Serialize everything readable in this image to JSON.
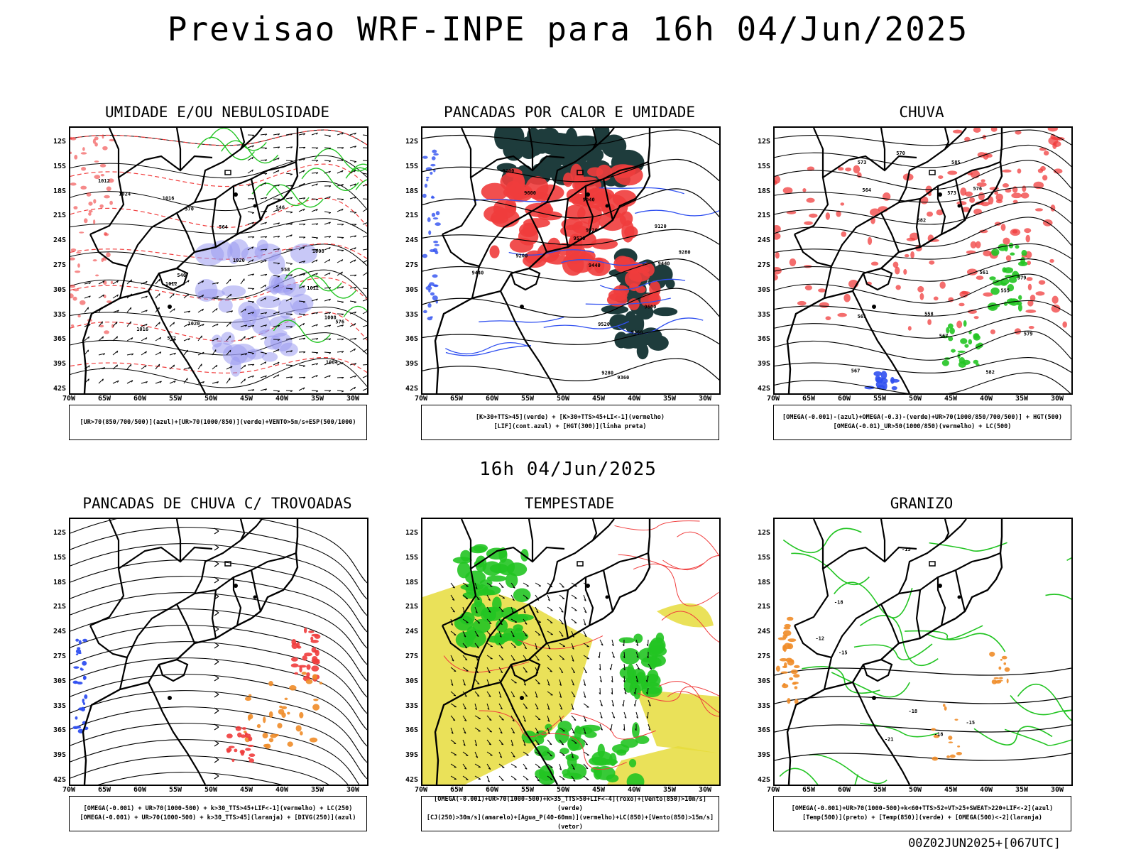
{
  "header": {
    "title": "Previsao WRF-INPE  para 16h 04/Jun/2025"
  },
  "middle_title": "16h 04/Jun/2025",
  "axes": {
    "lat_labels": [
      "12S",
      "15S",
      "18S",
      "21S",
      "24S",
      "27S",
      "30S",
      "33S",
      "36S",
      "39S",
      "42S"
    ],
    "lon_labels": [
      "70W",
      "65W",
      "60W",
      "55W",
      "50W",
      "45W",
      "40W",
      "35W",
      "30W"
    ]
  },
  "colors": {
    "red": "#f03c3c",
    "green": "#22c422",
    "blue": "#3050f0",
    "dark_teal": "#1e3c3c",
    "lavender": "#9a9af0",
    "yellow": "#e6dc3c",
    "orange": "#f08c28"
  },
  "panels": [
    {
      "title": "UMIDADE E/OU NEBULOSIDADE",
      "legend": [
        "[UR>70(850/700/500)](azul)+[UR>70(1000/850)](verde)+VENTO>5m/s+ESP(500/1000)"
      ],
      "contour_labels": [
        "1012",
        "1012",
        "1016",
        "1020",
        "1024",
        "1008",
        "1004",
        "1012",
        "1008",
        "1016",
        "1020",
        "570",
        "576",
        "564",
        "558",
        "552",
        "546",
        "540"
      ]
    },
    {
      "title": "PANCADAS POR CALOR E UMIDADE",
      "legend": [
        "[K>30+TTS>45](verde) + [K>30+TTS>45+LI<-1](vermelho)",
        "[LIF](cont.azul) + [HGT(300)](linha preta)"
      ],
      "contour_labels": [
        "9600",
        "9600",
        "9520",
        "9520",
        "9520",
        "9440",
        "9440",
        "9440",
        "9360",
        "9360",
        "9280",
        "9280",
        "9200",
        "9200",
        "9120",
        "9040"
      ]
    },
    {
      "title": "CHUVA",
      "legend": [
        "[OMEGA(-0.001)-(azul)+OMEGA(-0.3)-(verde)+UR>70(1000/850/700/500)] + HGT(500)",
        "[OMEGA(-0.01)_UR>50(1000/850)(vermelho) + LC(500)"
      ],
      "contour_labels": [
        "585",
        "582",
        "579",
        "576",
        "573",
        "570",
        "567",
        "564",
        "561",
        "558",
        "555",
        "582",
        "579",
        "567",
        "573",
        "561"
      ]
    },
    {
      "title": "PANCADAS DE CHUVA C/ TROVOADAS",
      "legend": [
        "[OMEGA(-0.001) + UR>70(1000-500) + k>30_TTS>45+LIF<-1](vermelho) + LC(250)",
        "[OMEGA(-0.001) + UR>70(1000-500) + k>30_TTS>45](laranja) + [DIVG(250)](azul)"
      ],
      "contour_labels": []
    },
    {
      "title": "TEMPESTADE",
      "legend": [
        "[OMEGA(-0.001)+UR>70(1000-500)+k>35_TTS>50+LIF<-4](roxo)+[Vento(850)>10m/s](verde)",
        "[CJ(250)>30m/s](amarelo)+[Agua_P(40-60mm)](vermelho)+LC(850)+[Vento(850)>15m/s](vetor)"
      ],
      "contour_labels": []
    },
    {
      "title": "GRANIZO",
      "legend": [
        "[OMEGA(-0.001)+UR>70(1000-500)+k<60+TTS>52+VT>25+SWEAT>220+LIF<-2](azul)",
        "[Temp(500)](preto) + [Temp(850)](verde) + [OMEGA(500)<-2](laranja)"
      ],
      "contour_labels": [
        "-15",
        "-15",
        "-15",
        "-18",
        "-18",
        "-18",
        "-21",
        "-12"
      ]
    }
  ],
  "footer": "00Z02JUN2025+[067UTC]"
}
